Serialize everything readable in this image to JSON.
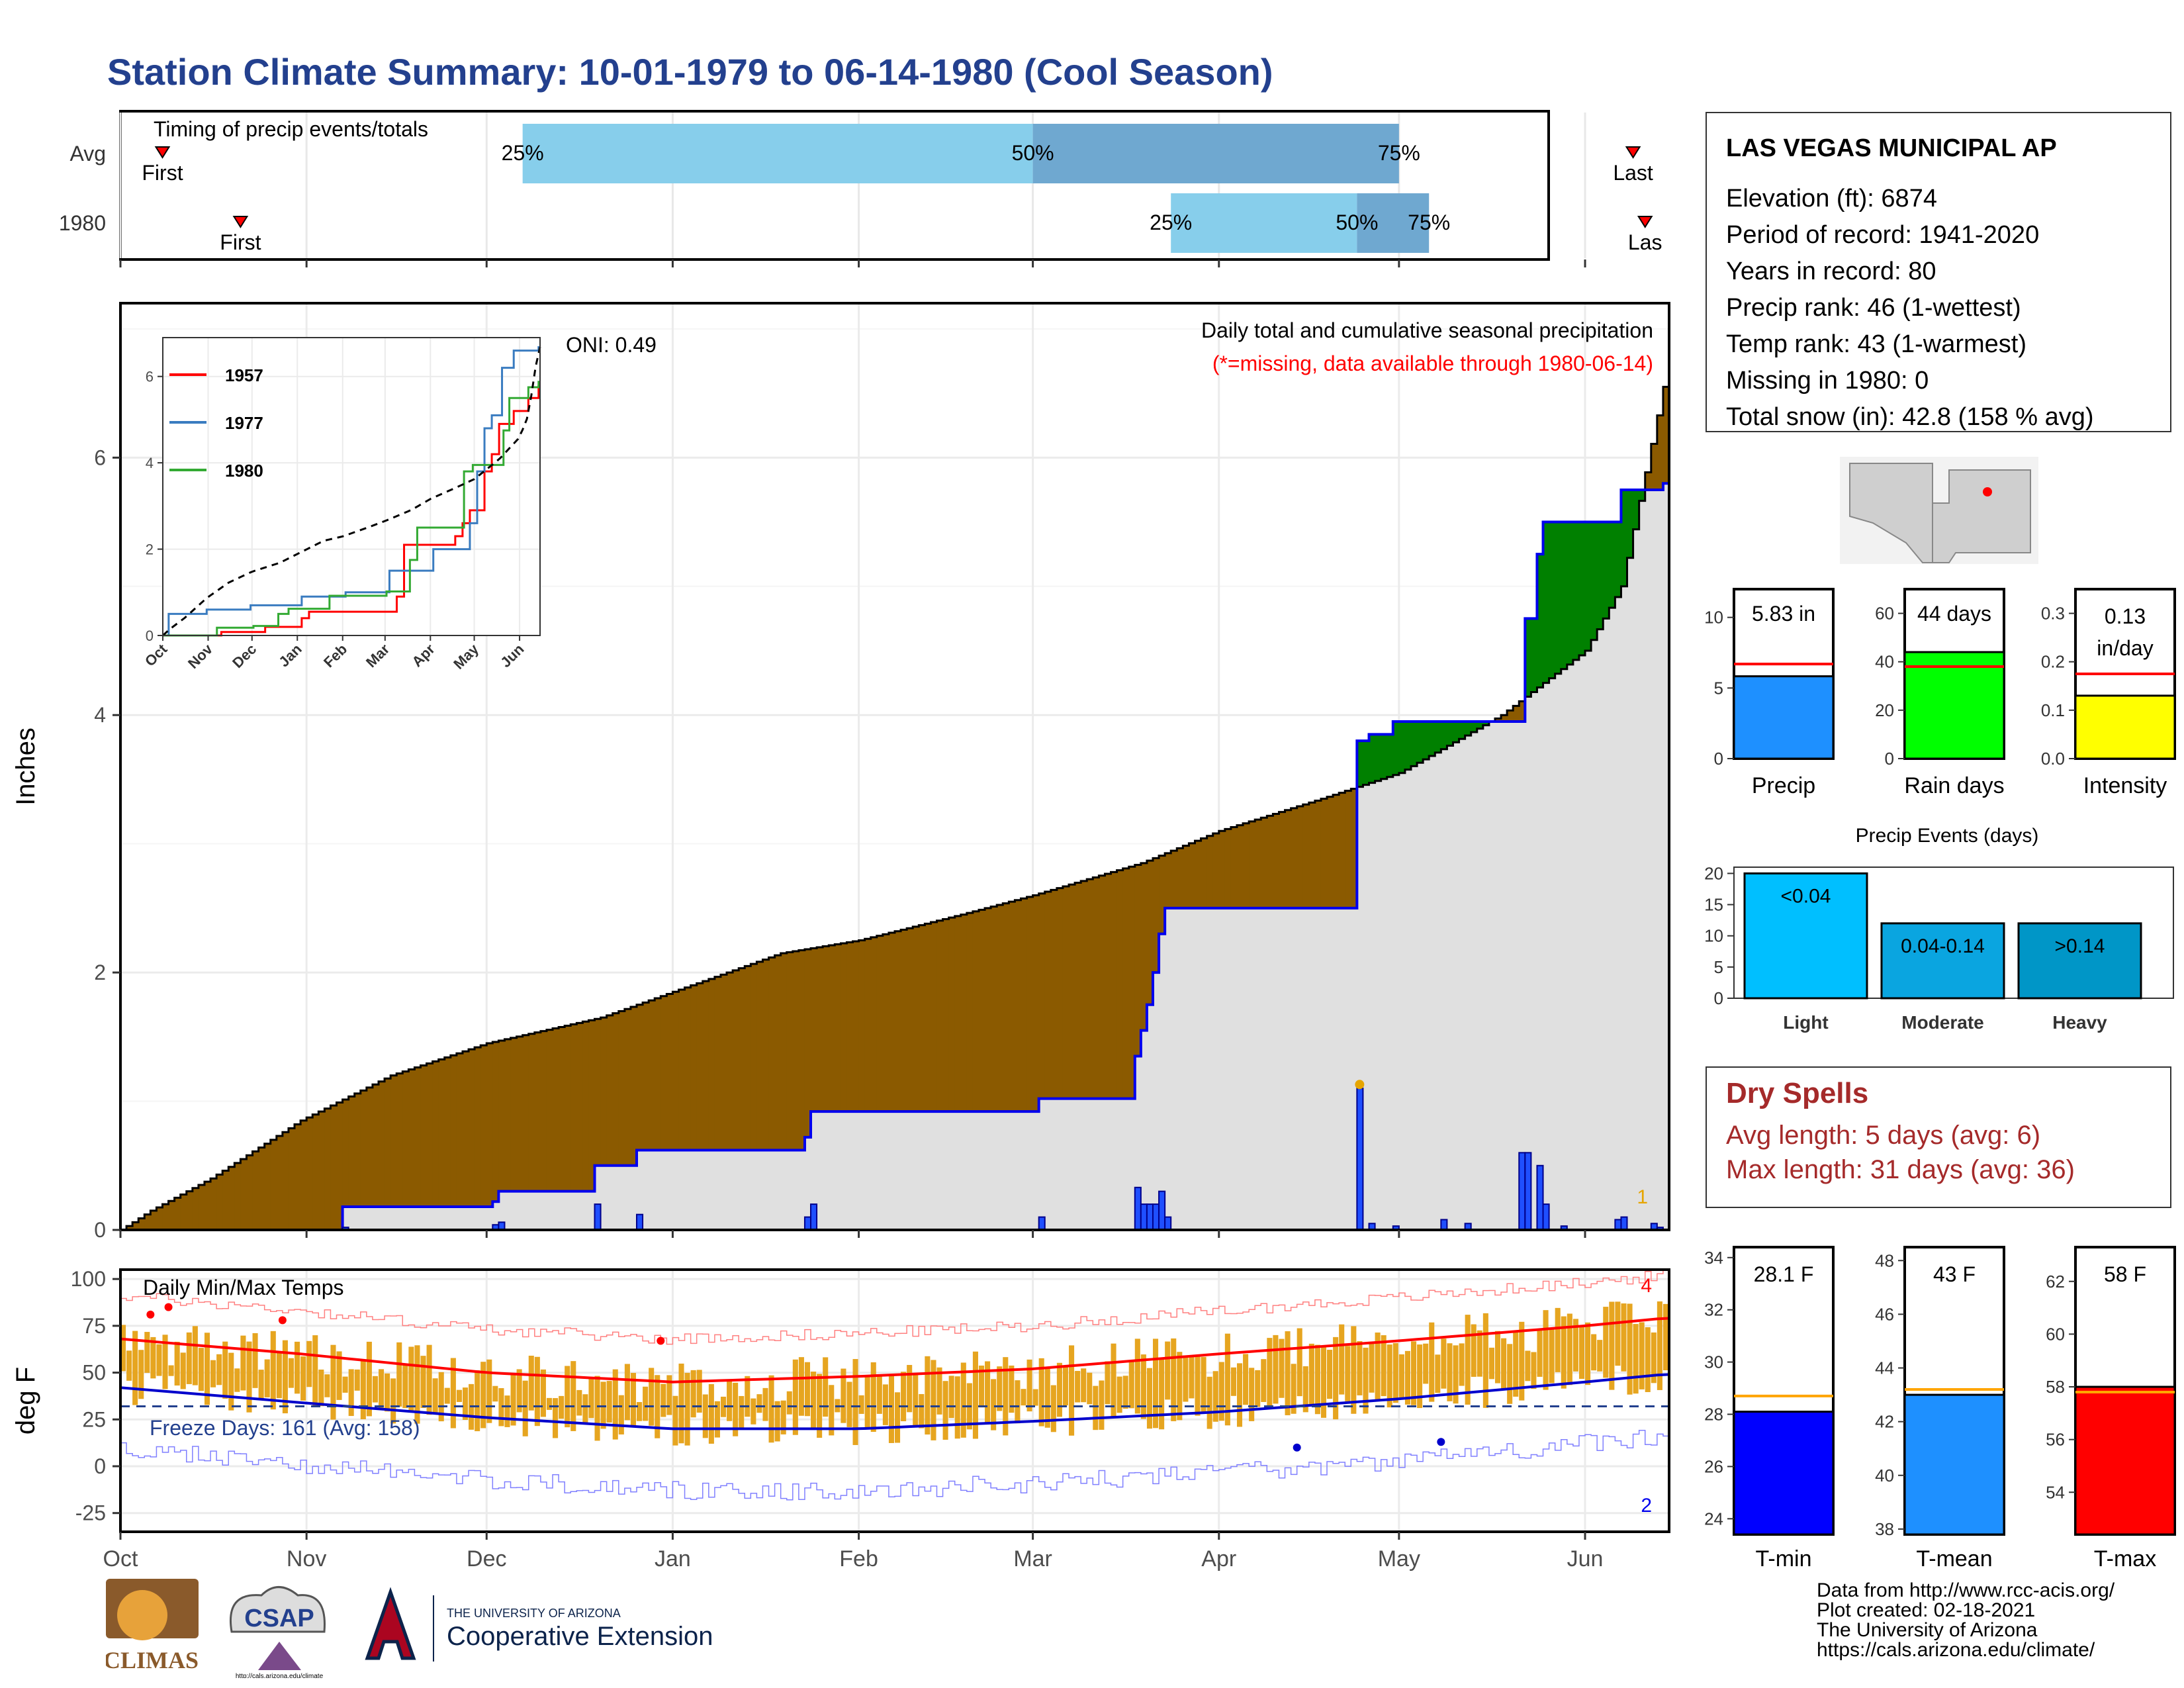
{
  "title": "Station Climate Summary: 10-01-1979 to 06-14-1980 (Cool Season)",
  "colors": {
    "title": "#23408e",
    "precip_fill": "#8b5a00",
    "surplus_fill": "#008000",
    "gray": "#e0e0e0",
    "blue": "#0000ee",
    "red": "#ff0000",
    "orange": "#e6a500",
    "dry_spell": "#a52a2a"
  },
  "timing": {
    "title": "Timing of precip events/totals",
    "rows": [
      {
        "label": "Avg",
        "p25": "25%",
        "p50": "50%",
        "p75": "75%",
        "first": "First",
        "last": "Last",
        "first_date": "1979-10-08",
        "last_date": "1980-06-09",
        "p25_date": "1979-12-07",
        "p50_date": "1980-03-01",
        "p75_date": "1980-05-01"
      },
      {
        "label": "1980",
        "p25": "25%",
        "p50": "50%",
        "p75": "75%",
        "first": "First",
        "last": "Las",
        "first_date": "1979-10-21",
        "last_date": "1980-06-11",
        "p25_date": "1980-03-24",
        "p50_date": "1980-04-24",
        "p75_date": "1980-05-06"
      }
    ]
  },
  "station": {
    "name": "LAS VEGAS MUNICIPAL AP",
    "lines": [
      "Elevation (ft): 6874",
      "Period of record: 1941-2020",
      "Years in record: 80",
      "Precip rank: 46 (1-wettest)",
      "Temp rank: 43 (1-warmest)",
      "Missing in 1980: 0",
      "Total snow (in): 42.8 (158 % avg)"
    ]
  },
  "precip": {
    "ylabel": "Inches",
    "subtitle": "Daily total and cumulative seasonal precipitation",
    "missing_note": "(*=missing, data available through 1980-06-14)",
    "oni": "ONI: 0.49",
    "corner_count": "1",
    "x_ticks": [
      "Oct",
      "Nov",
      "Dec",
      "Jan",
      "Feb",
      "Mar",
      "Apr",
      "May",
      "Jun"
    ],
    "y_ticks": [
      "0",
      "2",
      "4",
      "6"
    ],
    "ylim": [
      0,
      7.2
    ]
  },
  "inset": {
    "x_ticks": [
      "Oct",
      "Nov",
      "Dec",
      "Jan",
      "Feb",
      "Mar",
      "Apr",
      "May",
      "Jun"
    ],
    "y_ticks": [
      "0",
      "2",
      "4",
      "6"
    ],
    "legend": [
      "1957",
      "1977",
      "1980"
    ]
  },
  "temps": {
    "ylabel": "deg F",
    "title": "Daily Min/Max Temps",
    "freeze": "Freeze Days: 161 (Avg: 158)",
    "count_high": "4",
    "count_low": "2",
    "y_ticks": [
      "100",
      "75",
      "50",
      "25",
      "0",
      "-25"
    ],
    "x_ticks": [
      "Oct",
      "Nov",
      "Dec",
      "Jan",
      "Feb",
      "Mar",
      "Apr",
      "May",
      "Jun"
    ]
  },
  "bar_panels": {
    "precip": {
      "label": "Precip",
      "value_text": "5.83 in",
      "value": 5.83,
      "avg": 6.7,
      "ticks": [
        "0",
        "5",
        "10"
      ],
      "ylim": [
        0,
        12
      ]
    },
    "raindays": {
      "label": "Rain days",
      "value_text": "44 days",
      "value": 44,
      "avg": 38,
      "ticks": [
        "0",
        "20",
        "40",
        "60"
      ],
      "ylim": [
        0,
        70
      ]
    },
    "intensity": {
      "label": "Intensity",
      "value_text_1": "0.13",
      "value_text_2": "in/day",
      "value": 0.13,
      "avg": 0.175,
      "ticks": [
        "0.0",
        "0.1",
        "0.2",
        "0.3"
      ],
      "ylim": [
        0,
        0.35
      ]
    }
  },
  "events": {
    "title": "Precip Events (days)",
    "ticks": [
      "0",
      "5",
      "10",
      "15",
      "20"
    ],
    "bars": [
      {
        "label": "Light",
        "text": "<0.04",
        "value": 20
      },
      {
        "label": "Moderate",
        "text": "0.04-0.14",
        "value": 12
      },
      {
        "label": "Heavy",
        "text": ">0.14",
        "value": 12
      }
    ]
  },
  "dry": {
    "title": "Dry Spells",
    "avg": "Avg length: 5 days (avg: 6)",
    "max": "Max length: 31 days (avg: 36)"
  },
  "temp_panels": {
    "tmin": {
      "label": "T-min",
      "value_text": "28.1 F",
      "value": 28.1,
      "avg": 28.7,
      "ticks": [
        "24",
        "26",
        "28",
        "30",
        "32",
        "34"
      ],
      "ylim": [
        23.4,
        34.4
      ]
    },
    "tmean": {
      "label": "T-mean",
      "value_text": "43 F",
      "value": 43,
      "avg": 43.2,
      "ticks": [
        "38",
        "40",
        "42",
        "44",
        "46",
        "48"
      ],
      "ylim": [
        37.8,
        48.5
      ]
    },
    "tmax": {
      "label": "T-max",
      "value_text": "58 F",
      "value": 58,
      "avg": 57.8,
      "ticks": [
        "54",
        "56",
        "58",
        "60",
        "62"
      ],
      "ylim": [
        52.4,
        63.3
      ]
    }
  },
  "credits": [
    "Data from http://www.rcc-acis.org/",
    "Plot created: 02-18-2021",
    "The University of Arizona",
    "https://cals.arizona.edu/climate/"
  ],
  "logos": {
    "climas": "CLIMAS",
    "csap": "CSAP",
    "csap_url": "http://cals.arizona.edu/climate",
    "ua_small": "THE UNIVERSITY OF ARIZONA",
    "ua_big": "Cooperative Extension"
  }
}
